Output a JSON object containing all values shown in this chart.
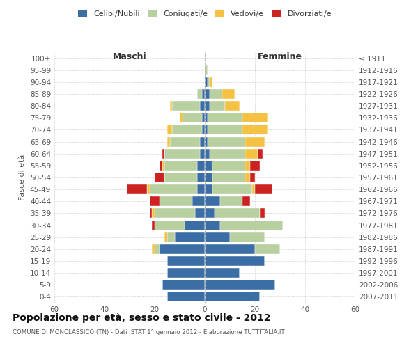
{
  "age_groups": [
    "0-4",
    "5-9",
    "10-14",
    "15-19",
    "20-24",
    "25-29",
    "30-34",
    "35-39",
    "40-44",
    "45-49",
    "50-54",
    "55-59",
    "60-64",
    "65-69",
    "70-74",
    "75-79",
    "80-84",
    "85-89",
    "90-94",
    "95-99",
    "100+"
  ],
  "birth_years": [
    "2007-2011",
    "2002-2006",
    "1997-2001",
    "1992-1996",
    "1987-1991",
    "1982-1986",
    "1977-1981",
    "1972-1976",
    "1967-1971",
    "1962-1966",
    "1957-1961",
    "1952-1956",
    "1947-1951",
    "1942-1946",
    "1937-1941",
    "1932-1936",
    "1927-1931",
    "1922-1926",
    "1917-1921",
    "1912-1916",
    "≤ 1911"
  ],
  "maschi_celibi": [
    15,
    17,
    15,
    15,
    18,
    12,
    8,
    4,
    5,
    3,
    3,
    3,
    2,
    2,
    1,
    1,
    2,
    1,
    0,
    0,
    0
  ],
  "maschi_coniugati": [
    0,
    0,
    0,
    0,
    2,
    3,
    12,
    16,
    13,
    19,
    13,
    13,
    14,
    12,
    12,
    8,
    11,
    2,
    0,
    0,
    0
  ],
  "maschi_vedovi": [
    0,
    0,
    0,
    0,
    1,
    1,
    0,
    1,
    0,
    1,
    0,
    1,
    0,
    1,
    2,
    1,
    1,
    0,
    0,
    0,
    0
  ],
  "maschi_divorziati": [
    0,
    0,
    0,
    0,
    0,
    0,
    1,
    1,
    4,
    8,
    4,
    1,
    1,
    0,
    0,
    0,
    0,
    0,
    0,
    0,
    0
  ],
  "femmine_celibi": [
    22,
    28,
    14,
    24,
    20,
    10,
    6,
    4,
    6,
    3,
    3,
    3,
    2,
    1,
    1,
    1,
    2,
    2,
    1,
    0,
    0
  ],
  "femmine_coniugati": [
    0,
    0,
    0,
    0,
    10,
    14,
    25,
    18,
    9,
    16,
    13,
    13,
    14,
    15,
    14,
    14,
    6,
    5,
    1,
    1,
    0
  ],
  "femmine_vedovi": [
    0,
    0,
    0,
    0,
    0,
    0,
    0,
    0,
    0,
    1,
    2,
    2,
    5,
    8,
    10,
    10,
    6,
    5,
    1,
    0,
    0
  ],
  "femmine_divorziati": [
    0,
    0,
    0,
    0,
    0,
    0,
    0,
    2,
    3,
    7,
    2,
    4,
    2,
    0,
    0,
    0,
    0,
    0,
    0,
    0,
    0
  ],
  "colors": {
    "celibi": "#3a6ea5",
    "coniugati": "#b8cfa0",
    "vedovi": "#f5c142",
    "divorziati": "#cc2222"
  },
  "title": "Popolazione per età, sesso e stato civile - 2012",
  "subtitle": "COMUNE DI MONCLASSICO (TN) - Dati ISTAT 1° gennaio 2012 - Elaborazione TUTTITALIA.IT",
  "xlabel_left": "Maschi",
  "xlabel_right": "Femmine",
  "ylabel_left": "Fasce di età",
  "xlim": 60,
  "background_color": "#ffffff",
  "grid_color": "#cccccc"
}
